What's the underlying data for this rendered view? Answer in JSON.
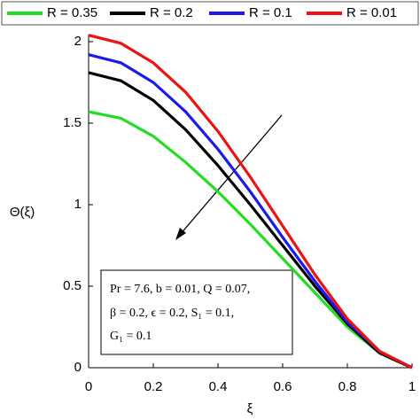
{
  "chart_data": {
    "type": "line",
    "x": [
      0,
      0.1,
      0.2,
      0.3,
      0.4,
      0.5,
      0.6,
      0.7,
      0.8,
      0.9,
      1
    ],
    "series": [
      {
        "name": "R = 0.35",
        "color": "#22dd22",
        "values": [
          1.57,
          1.53,
          1.42,
          1.26,
          1.08,
          0.88,
          0.67,
          0.46,
          0.25,
          0.09,
          0
        ]
      },
      {
        "name": "R = 0.2",
        "color": "#000000",
        "values": [
          1.81,
          1.76,
          1.64,
          1.46,
          1.24,
          1.0,
          0.75,
          0.5,
          0.27,
          0.09,
          0
        ]
      },
      {
        "name": "R = 0.1",
        "color": "#1a1aee",
        "values": [
          1.92,
          1.87,
          1.75,
          1.57,
          1.34,
          1.08,
          0.8,
          0.53,
          0.28,
          0.1,
          0
        ]
      },
      {
        "name": "R = 0.01",
        "color": "#ee1111",
        "values": [
          2.04,
          1.99,
          1.87,
          1.69,
          1.45,
          1.17,
          0.87,
          0.57,
          0.3,
          0.1,
          0
        ]
      }
    ],
    "xlim": [
      0,
      1
    ],
    "ylim": [
      0,
      2
    ],
    "xticks": [
      0,
      0.2,
      0.4,
      0.6,
      0.8,
      1
    ],
    "yticks": [
      0,
      0.5,
      1,
      1.5,
      2
    ],
    "xlabel": "ξ",
    "ylabel": "Θ(ξ)",
    "annotation": [
      "Pr = 7.6, b = 0.01, Q = 0.07,",
      "β = 0.2, ϵ = 0.2, S₁ = 0.1,",
      "G₁ = 0.1"
    ]
  }
}
